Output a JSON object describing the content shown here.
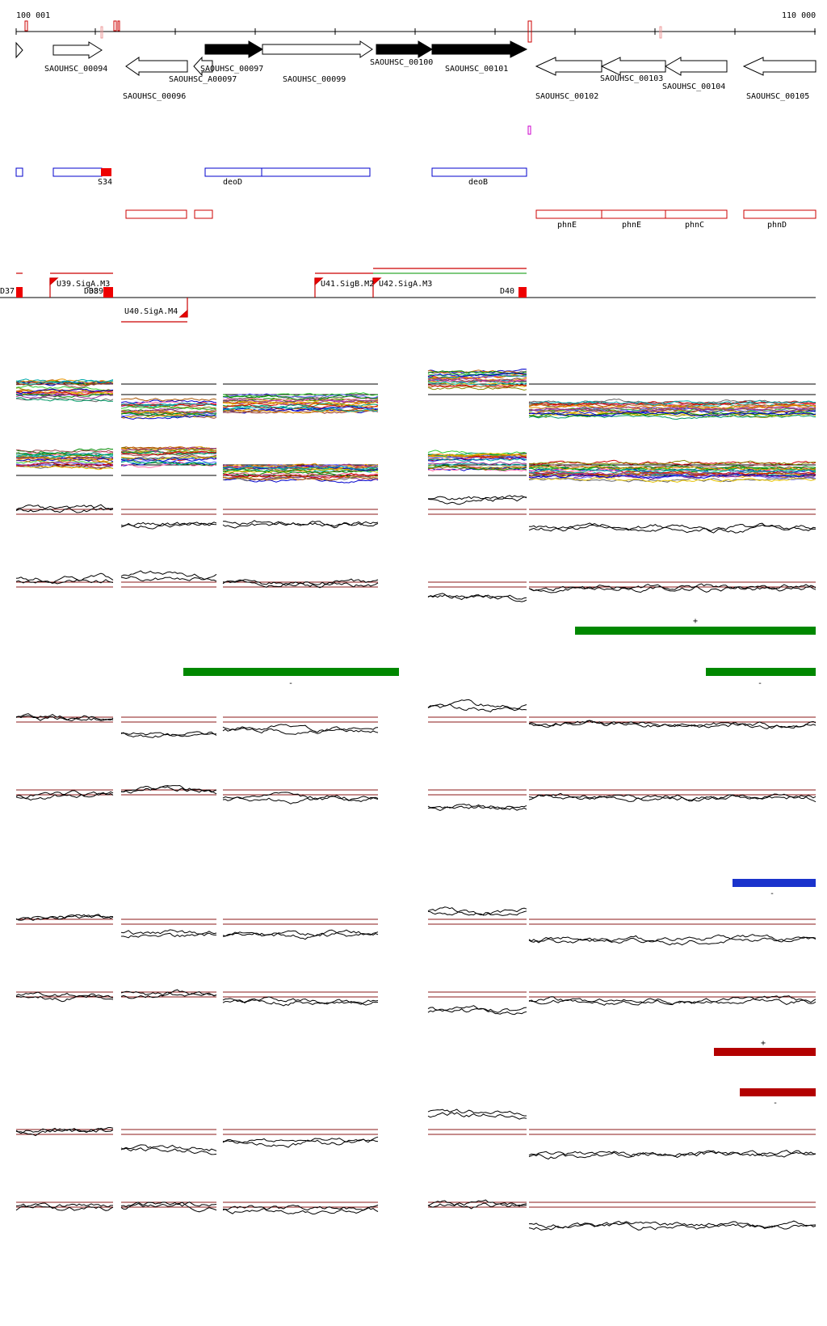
{
  "ruler": {
    "start_label": "100 001",
    "end_label": "110 000"
  },
  "genes": [
    {
      "id": "SAOUHSC_00094",
      "strand": "+",
      "filled": false
    },
    {
      "id": "SAOUHSC_00096",
      "strand": "-",
      "filled": false
    },
    {
      "id": "SAOUHSC_A00097",
      "strand": "-",
      "filled": false
    },
    {
      "id": "SAOUHSC_00097",
      "strand": "+",
      "filled": true
    },
    {
      "id": "SAOUHSC_00099",
      "strand": "+",
      "filled": false
    },
    {
      "id": "SAOUHSC_00100",
      "strand": "+",
      "filled": true
    },
    {
      "id": "SAOUHSC_00101",
      "strand": "+",
      "filled": true
    },
    {
      "id": "SAOUHSC_00102",
      "strand": "-",
      "filled": false
    },
    {
      "id": "SAOUHSC_00103",
      "strand": "-",
      "filled": false
    },
    {
      "id": "SAOUHSC_00104",
      "strand": "-",
      "filled": false
    },
    {
      "id": "SAOUHSC_00105",
      "strand": "-",
      "filled": false
    }
  ],
  "gene_names_plus": [
    "S34",
    "deoD",
    "deoB"
  ],
  "gene_names_minus": [
    "phnE",
    "phnE",
    "phnC",
    "phnD"
  ],
  "promoters": [
    "U39.SigA.M3",
    "U40.SigA.M4",
    "U41.SigB.M2",
    "U42.SigA.M3"
  ],
  "terminators": [
    "D37",
    "D38",
    "D39",
    "D40"
  ],
  "colors": {
    "gene_plus_box": "#0000cc",
    "gene_minus_box": "#cc0000",
    "threshold_line": "#8b1a1a",
    "condition_1": "#008800",
    "condition_2": "#1a33cc",
    "condition_3": "#cc0000",
    "condition_4": "#e6e62e"
  },
  "expression_blocks": [
    {
      "strand": "+"
    },
    {
      "strand": "-"
    },
    {
      "strand": "-"
    },
    {
      "strand": "-"
    },
    {
      "strand": "+"
    },
    {
      "strand": "-"
    }
  ]
}
